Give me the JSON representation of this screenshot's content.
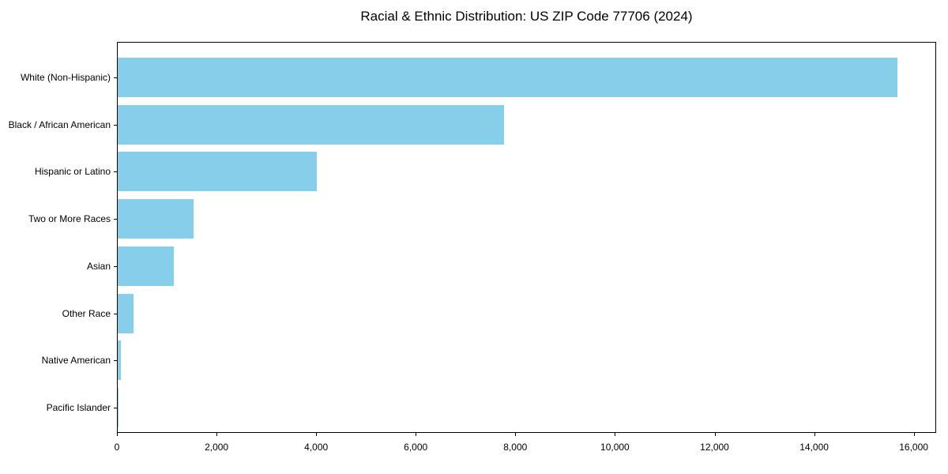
{
  "title": "Racial & Ethnic Distribution: US ZIP Code 77706 (2024)",
  "chart_data": {
    "type": "bar",
    "orientation": "horizontal",
    "title": "Racial & Ethnic Distribution: US ZIP Code 77706 (2024)",
    "xlabel": "",
    "ylabel": "",
    "categories": [
      "White (Non-Hispanic)",
      "Black / African American",
      "Hispanic or Latino",
      "Two or More Races",
      "Asian",
      "Other Race",
      "Native American",
      "Pacific Islander"
    ],
    "values": [
      15660,
      7750,
      4000,
      1520,
      1120,
      315,
      60,
      15
    ],
    "xlim": [
      0,
      16450
    ],
    "xticks": [
      0,
      2000,
      4000,
      6000,
      8000,
      10000,
      12000,
      14000,
      16000
    ],
    "xtick_labels": [
      "0",
      "2,000",
      "4,000",
      "6,000",
      "8,000",
      "10,000",
      "12,000",
      "14,000",
      "16,000"
    ],
    "bar_color": "#87CEEB",
    "spine_color": "#000000",
    "grid": false,
    "legend": null
  }
}
